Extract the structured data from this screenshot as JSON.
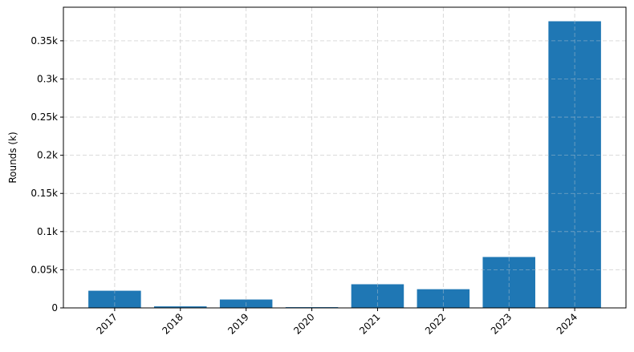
{
  "chart_data": {
    "type": "bar",
    "title": "",
    "xlabel": "",
    "ylabel": "Rounds (k)",
    "categories": [
      "2017",
      "2018",
      "2019",
      "2020",
      "2021",
      "2022",
      "2023",
      "2024"
    ],
    "values": [
      0.0225,
      0.002,
      0.011,
      0.001,
      0.031,
      0.0245,
      0.0667,
      0.3756
    ],
    "ylim": [
      0,
      0.394
    ],
    "yticks": [
      0,
      0.05,
      0.1,
      0.15,
      0.2,
      0.25,
      0.3,
      0.35
    ],
    "ytick_labels": [
      "0",
      "0.05k",
      "0.1k",
      "0.15k",
      "0.2k",
      "0.25k",
      "0.3k",
      "0.35k"
    ],
    "grid": true,
    "bar_color": "#1f77b4",
    "xtick_rotation_deg": 45
  }
}
